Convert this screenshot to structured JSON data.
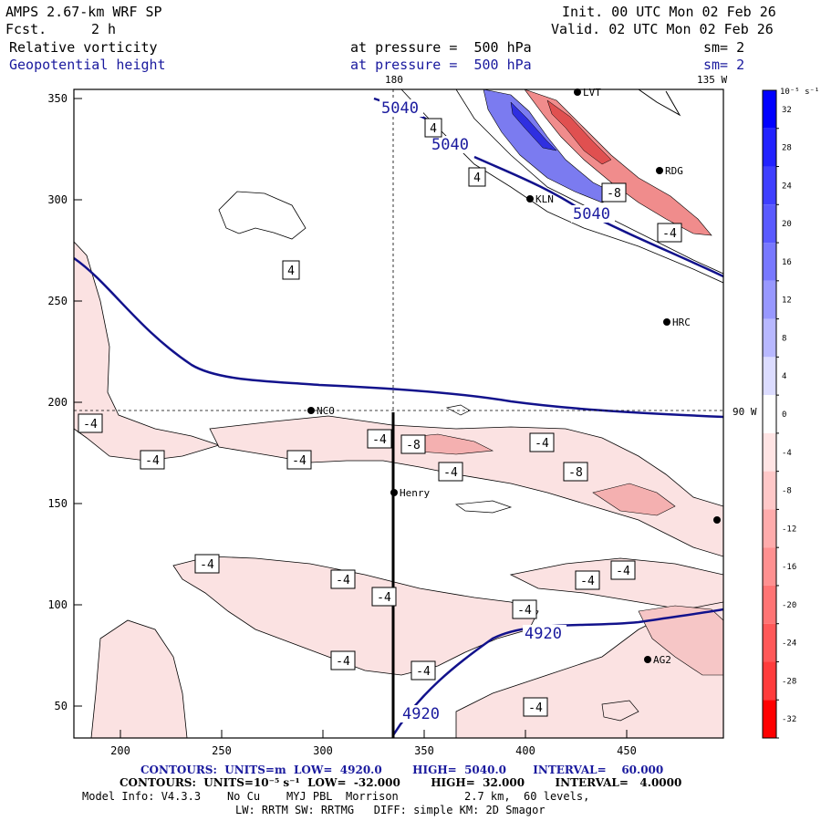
{
  "header": {
    "model_title": "AMPS 2.67-km WRF SP",
    "fcst_label": "Fcst.",
    "fcst_value": "2 h",
    "init_line": "Init. 00 UTC Mon 02 Feb 26",
    "valid_line": "Valid. 02 UTC Mon 02 Feb 26",
    "field1_name": "Relative vorticity",
    "field1_level": "at pressure =  500 hPa",
    "field1_sm": "sm= 2",
    "field2_name": "Geopotential height",
    "field2_level": "at pressure =  500 hPa",
    "field2_sm": "sm= 2"
  },
  "map": {
    "top_labels": [
      "180",
      "135 W"
    ],
    "right_label": "90 W",
    "x_ticks": [
      "200",
      "250",
      "300",
      "350",
      "400",
      "450"
    ],
    "y_ticks": [
      "350",
      "300",
      "250",
      "200",
      "150",
      "100",
      "50"
    ],
    "stations": [
      "LVT",
      "RDG",
      "KLN",
      "HRC",
      "NCO",
      "Henry",
      "AG2"
    ],
    "height_labels": [
      "5040",
      "5040",
      "5040",
      "4920",
      "4920"
    ],
    "vort_labels": [
      "4",
      "4",
      "4",
      "-8",
      "-4",
      "-4",
      "-4",
      "-4",
      "-4",
      "-8",
      "-4",
      "-4",
      "-8",
      "-4",
      "-4",
      "-4",
      "-4",
      "-4",
      "-4",
      "-4",
      "-4",
      "-4"
    ],
    "colors": {
      "height_line": "#12128c",
      "neg_fill": "#fbe2e2",
      "pos_fill": "#4d4dff"
    }
  },
  "colorbar": {
    "unit": "10⁻⁵ s⁻¹",
    "ticks": [
      "32",
      "28",
      "24",
      "20",
      "16",
      "12",
      "8",
      "4",
      "0",
      "-4",
      "-8",
      "-12",
      "-16",
      "-20",
      "-24",
      "-28",
      "-32"
    ],
    "colors": [
      "#0000ff",
      "#2222ff",
      "#3f3fff",
      "#5a5aff",
      "#7878ff",
      "#9898ff",
      "#b8b8ff",
      "#dcdcff",
      "#ffffff",
      "#ffe4e4",
      "#ffc8c8",
      "#ffacac",
      "#ff9090",
      "#ff7474",
      "#ff5858",
      "#ff3c3c",
      "#ff0000"
    ]
  },
  "footer": {
    "line1": "CONTOURS:  UNITS=m  LOW=  4920.0        HIGH=  5040.0       INTERVAL=    60.000",
    "line2": "CONTOURS:  UNITS=10⁻⁵ s⁻¹  LOW=  -32.000        HIGH=  32.000        INTERVAL=   4.0000",
    "line3": "Model Info: V4.3.3    No Cu    MYJ PBL  Morrison          2.7 km,  60 levels,",
    "line4": "LW: RRTM SW: RRTMG   DIFF: simple KM: 2D Smagor"
  }
}
